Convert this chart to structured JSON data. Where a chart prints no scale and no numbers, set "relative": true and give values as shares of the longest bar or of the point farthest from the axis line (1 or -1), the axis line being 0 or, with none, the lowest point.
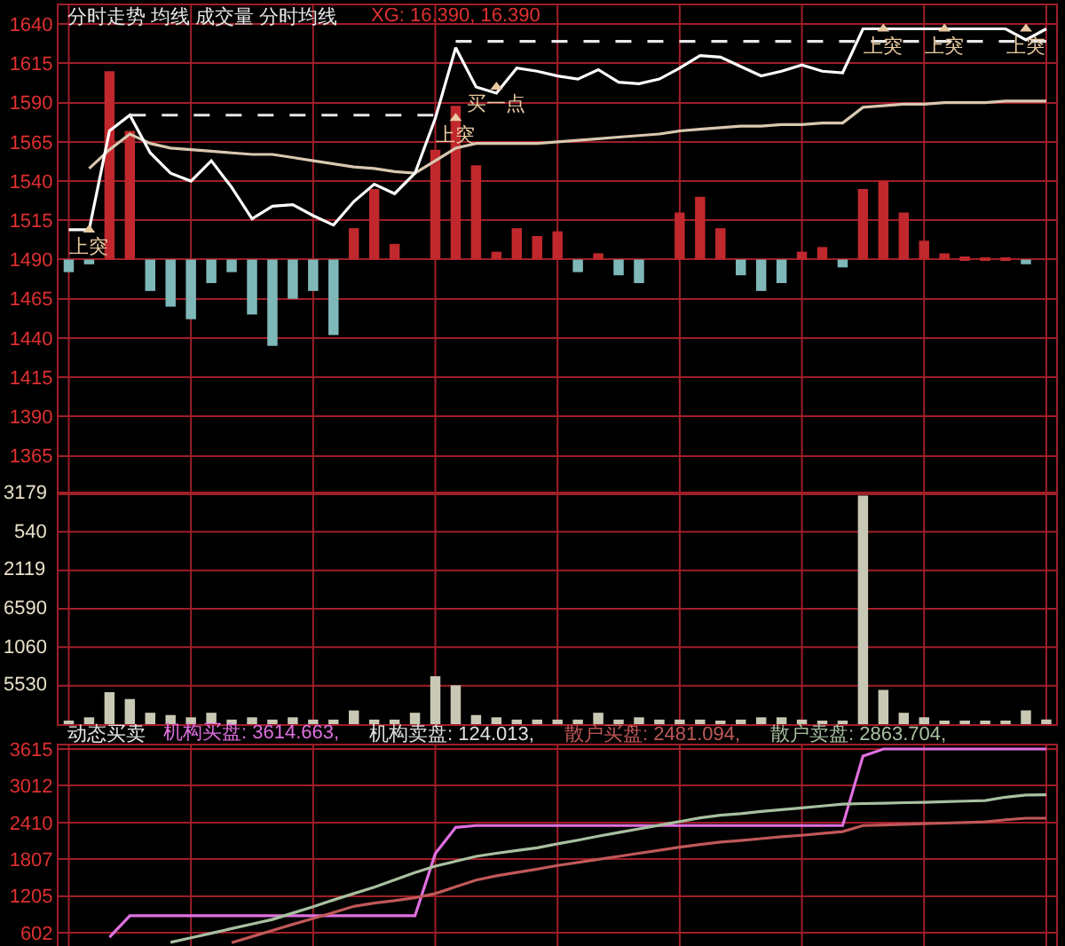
{
  "chart_data": [
    {
      "type": "line",
      "title": "分时走势 均线 成交量 分时均线",
      "categories": [
        null,
        null,
        null,
        null,
        null,
        null,
        null,
        null,
        null,
        null,
        null,
        null,
        null,
        null,
        null,
        null,
        null,
        null,
        null,
        null,
        null,
        null,
        null,
        null,
        null,
        null,
        null,
        null,
        null,
        null,
        null,
        null,
        null,
        null,
        null,
        null,
        null,
        null,
        null,
        null,
        null,
        null,
        null,
        null,
        null,
        null,
        null,
        null,
        null
      ],
      "ylim": [
        1341,
        1652
      ],
      "yticks": [
        1640,
        1615,
        1590,
        1565,
        1540,
        1515,
        1490,
        1465,
        1440,
        1415,
        1390,
        1365
      ],
      "tick_labels": "y",
      "grid": true,
      "series": [
        {
          "type": "bar",
          "color": "#c0282d",
          "base": [
            null,
            null,
            1490,
            1490,
            null,
            null,
            null,
            null,
            null,
            null,
            null,
            null,
            null,
            null,
            1490,
            1490,
            1490,
            null,
            1490,
            1490,
            1490,
            1490,
            1490,
            1490,
            1490,
            null,
            1490,
            null,
            null,
            null,
            1490,
            1490,
            1490,
            null,
            null,
            null,
            1490,
            1490,
            null,
            1490,
            1490,
            1490,
            1490,
            1490,
            1490,
            1490,
            1490,
            null,
            null
          ],
          "values": [
            null,
            null,
            120,
            82,
            null,
            null,
            null,
            null,
            null,
            null,
            null,
            null,
            null,
            null,
            20,
            45,
            10,
            null,
            70,
            98,
            60,
            5,
            20,
            15,
            18,
            null,
            4,
            null,
            null,
            null,
            30,
            40,
            20,
            null,
            null,
            null,
            5,
            8,
            null,
            45,
            50,
            30,
            12,
            4,
            2,
            1,
            1,
            null,
            null
          ]
        },
        {
          "type": "bar",
          "color": "#7fb8b8",
          "base": [
            1490,
            1490,
            null,
            null,
            1490,
            1490,
            1490,
            1490,
            1490,
            1490,
            1490,
            1490,
            1490,
            1490,
            null,
            null,
            null,
            null,
            null,
            null,
            null,
            null,
            null,
            null,
            null,
            1490,
            null,
            1490,
            1490,
            null,
            null,
            null,
            null,
            1490,
            1490,
            1490,
            null,
            null,
            1490,
            null,
            null,
            null,
            null,
            null,
            null,
            null,
            null,
            1490,
            null
          ],
          "values": [
            -8,
            -3,
            null,
            null,
            -20,
            -30,
            -38,
            -15,
            -8,
            -35,
            -55,
            -25,
            -20,
            -48,
            null,
            null,
            null,
            null,
            null,
            null,
            null,
            null,
            null,
            null,
            null,
            -8,
            null,
            -10,
            -15,
            null,
            null,
            null,
            null,
            -10,
            -20,
            -15,
            null,
            null,
            -5,
            null,
            null,
            null,
            null,
            null,
            null,
            null,
            null,
            -3,
            null
          ]
        },
        {
          "type": "line",
          "color": "#d8c8b0",
          "values": [
            null,
            1548,
            1560,
            1570,
            1564,
            1561,
            1560,
            1559,
            1558,
            1557,
            1557,
            1555,
            1553,
            1551,
            1549,
            1548,
            1546,
            1545,
            1553,
            1561,
            1564,
            1564,
            1564,
            1564,
            1565,
            1566,
            1567,
            1568,
            1569,
            1570,
            1572,
            1573,
            1574,
            1575,
            1575,
            1576,
            1576,
            1577,
            1577,
            1587,
            1588,
            1589,
            1589,
            1590,
            1590,
            1590,
            1591,
            1591,
            1591
          ]
        },
        {
          "type": "line",
          "color": "#ffffff",
          "values": [
            1509,
            1509,
            1572,
            1582,
            1558,
            1545,
            1540,
            1553,
            1536,
            1516,
            1524,
            1525,
            1518,
            1512,
            1527,
            1538,
            1532,
            1545,
            1580,
            1625,
            1600,
            1596,
            1612,
            1610,
            1607,
            1605,
            1611,
            1603,
            1602,
            1605,
            1612,
            1620,
            1619,
            1613,
            1607,
            1610,
            1614,
            1610,
            1609,
            1637,
            1637,
            1637,
            1637,
            1637,
            1637,
            1637,
            1637,
            1630,
            1637
          ]
        },
        {
          "type": "line",
          "color": "#e8e8e8",
          "line_style": "dashed",
          "values": [
            null,
            null,
            null,
            1582,
            1582,
            1582,
            1582,
            1582,
            1582,
            1582,
            1582,
            1582,
            1582,
            1582,
            1582,
            1582,
            1582,
            1582,
            1582,
            null,
            null,
            null,
            null,
            null,
            null,
            null,
            null,
            null,
            null,
            null,
            null,
            null,
            null,
            null,
            null,
            null,
            null,
            null,
            null,
            null,
            null,
            null,
            null,
            null,
            null,
            null,
            null,
            null,
            null
          ]
        },
        {
          "type": "line",
          "color": "#e8e8e8",
          "line_style": "dashed",
          "values": [
            null,
            null,
            null,
            null,
            null,
            null,
            null,
            null,
            null,
            null,
            null,
            null,
            null,
            null,
            null,
            null,
            null,
            null,
            null,
            1629,
            1629,
            1629,
            1629,
            1629,
            1629,
            1629,
            1629,
            1629,
            1629,
            1629,
            1629,
            1629,
            1629,
            1629,
            1629,
            1629,
            1629,
            1629,
            1629,
            1629,
            1629,
            1629,
            1629,
            1629,
            1629,
            1629,
            1629,
            1629,
            1629
          ]
        },
        {
          "type": "scatter",
          "color": "#e8c8a0",
          "marker": "triangle",
          "values": [
            null,
            1509,
            null,
            null,
            null,
            null,
            null,
            null,
            null,
            null,
            null,
            null,
            null,
            null,
            null,
            null,
            null,
            null,
            null,
            1580,
            null,
            1600,
            null,
            null,
            null,
            null,
            null,
            null,
            null,
            null,
            null,
            null,
            null,
            null,
            null,
            null,
            null,
            null,
            null,
            null,
            1637,
            null,
            null,
            1637,
            null,
            null,
            null,
            1637,
            null
          ],
          "value_labels": [
            null,
            "上突",
            null,
            null,
            null,
            null,
            null,
            null,
            null,
            null,
            null,
            null,
            null,
            null,
            null,
            null,
            null,
            null,
            null,
            "上突",
            null,
            "买一点",
            null,
            null,
            null,
            null,
            null,
            null,
            null,
            null,
            null,
            null,
            null,
            null,
            null,
            null,
            null,
            null,
            null,
            null,
            "上突",
            null,
            null,
            "上突",
            null,
            null,
            null,
            "上突",
            null
          ]
        }
      ],
      "annotations": [
        "XG: 16.390, 16.390"
      ]
    },
    {
      "type": "bar",
      "relative": true,
      "categories": [
        null,
        null,
        null,
        null,
        null,
        null,
        null,
        null,
        null,
        null,
        null,
        null,
        null,
        null,
        null,
        null,
        null,
        null,
        null,
        null,
        null,
        null,
        null,
        null,
        null,
        null,
        null,
        null,
        null,
        null,
        null,
        null,
        null,
        null,
        null,
        null,
        null,
        null,
        null,
        null,
        null,
        null,
        null,
        null,
        null,
        null,
        null,
        null,
        null
      ],
      "tick_labels": false,
      "grid": true,
      "series": [
        {
          "color": "#c8c8b4",
          "values": [
            0.01,
            0.03,
            0.14,
            0.11,
            0.05,
            0.04,
            0.03,
            0.05,
            0.02,
            0.03,
            0.02,
            0.03,
            0.02,
            0.02,
            0.06,
            0.02,
            0.02,
            0.05,
            0.21,
            0.17,
            0.04,
            0.03,
            0.02,
            0.02,
            0.02,
            0.02,
            0.05,
            0.02,
            0.03,
            0.02,
            0.02,
            0.02,
            0.01,
            0.02,
            0.03,
            0.03,
            0.02,
            0.01,
            0.01,
            1,
            0.15,
            0.05,
            0.03,
            0.01,
            0.01,
            0.01,
            0.01,
            0.06,
            0.02
          ]
        }
      ],
      "annotations": [
        "3179",
        "540",
        "2119",
        "6590",
        "1060",
        "5530"
      ]
    },
    {
      "type": "line",
      "title": "动态买卖",
      "categories": [
        null,
        null,
        null,
        null,
        null,
        null,
        null,
        null,
        null,
        null,
        null,
        null,
        null,
        null,
        null,
        null,
        null,
        null,
        null,
        null,
        null,
        null,
        null,
        null,
        null,
        null,
        null,
        null,
        null,
        null,
        null,
        null,
        null,
        null,
        null,
        null,
        null,
        null,
        null,
        null,
        null,
        null,
        null,
        null,
        null,
        null,
        null,
        null,
        null
      ],
      "ylim": [
        385,
        3673
      ],
      "yticks": [
        602,
        1205,
        1807,
        2410,
        3012,
        3615
      ],
      "tick_labels": "y",
      "grid": true,
      "series": [
        {
          "name": "机构买盘: 3614.663,",
          "color": "#e070e0",
          "values": [
            null,
            null,
            530,
            880,
            880,
            880,
            880,
            880,
            880,
            880,
            880,
            880,
            880,
            880,
            880,
            880,
            880,
            880,
            1900,
            2330,
            2360,
            2360,
            2360,
            2360,
            2360,
            2360,
            2360,
            2360,
            2360,
            2360,
            2360,
            2360,
            2360,
            2360,
            2360,
            2360,
            2360,
            2360,
            2360,
            3500,
            3615,
            3615,
            3615,
            3615,
            3615,
            3615,
            3615,
            3615,
            3615
          ]
        },
        {
          "name": "机构卖盘: 124.013,",
          "color": "#e0e0e0",
          "values": [
            null,
            null,
            null,
            null,
            null,
            null,
            null,
            null,
            null,
            null,
            null,
            null,
            null,
            null,
            null,
            null,
            null,
            null,
            null,
            null,
            null,
            null,
            null,
            null,
            null,
            null,
            null,
            null,
            null,
            null,
            null,
            null,
            null,
            null,
            null,
            null,
            null,
            null,
            null,
            null,
            null,
            null,
            null,
            null,
            null,
            null,
            null,
            null,
            null
          ]
        },
        {
          "name": "散户买盘: 2481.094,",
          "color": "#c05858",
          "values": [
            null,
            null,
            null,
            null,
            null,
            null,
            null,
            null,
            440,
            540,
            640,
            740,
            835,
            935,
            1035,
            1090,
            1130,
            1175,
            1245,
            1355,
            1465,
            1535,
            1590,
            1645,
            1705,
            1755,
            1805,
            1855,
            1905,
            1955,
            2005,
            2050,
            2090,
            2115,
            2145,
            2175,
            2200,
            2230,
            2260,
            2360,
            2370,
            2380,
            2390,
            2400,
            2410,
            2420,
            2455,
            2480,
            2480
          ]
        },
        {
          "name": "散户卖盘: 2863.704,",
          "color": "#a8c0a0",
          "values": [
            null,
            null,
            null,
            null,
            null,
            445,
            520,
            595,
            670,
            745,
            820,
            925,
            1030,
            1140,
            1245,
            1350,
            1470,
            1590,
            1695,
            1775,
            1855,
            1905,
            1950,
            1995,
            2060,
            2120,
            2185,
            2245,
            2305,
            2365,
            2425,
            2485,
            2530,
            2555,
            2590,
            2620,
            2650,
            2680,
            2710,
            2720,
            2725,
            2735,
            2740,
            2750,
            2760,
            2770,
            2825,
            2860,
            2865
          ]
        }
      ]
    }
  ]
}
